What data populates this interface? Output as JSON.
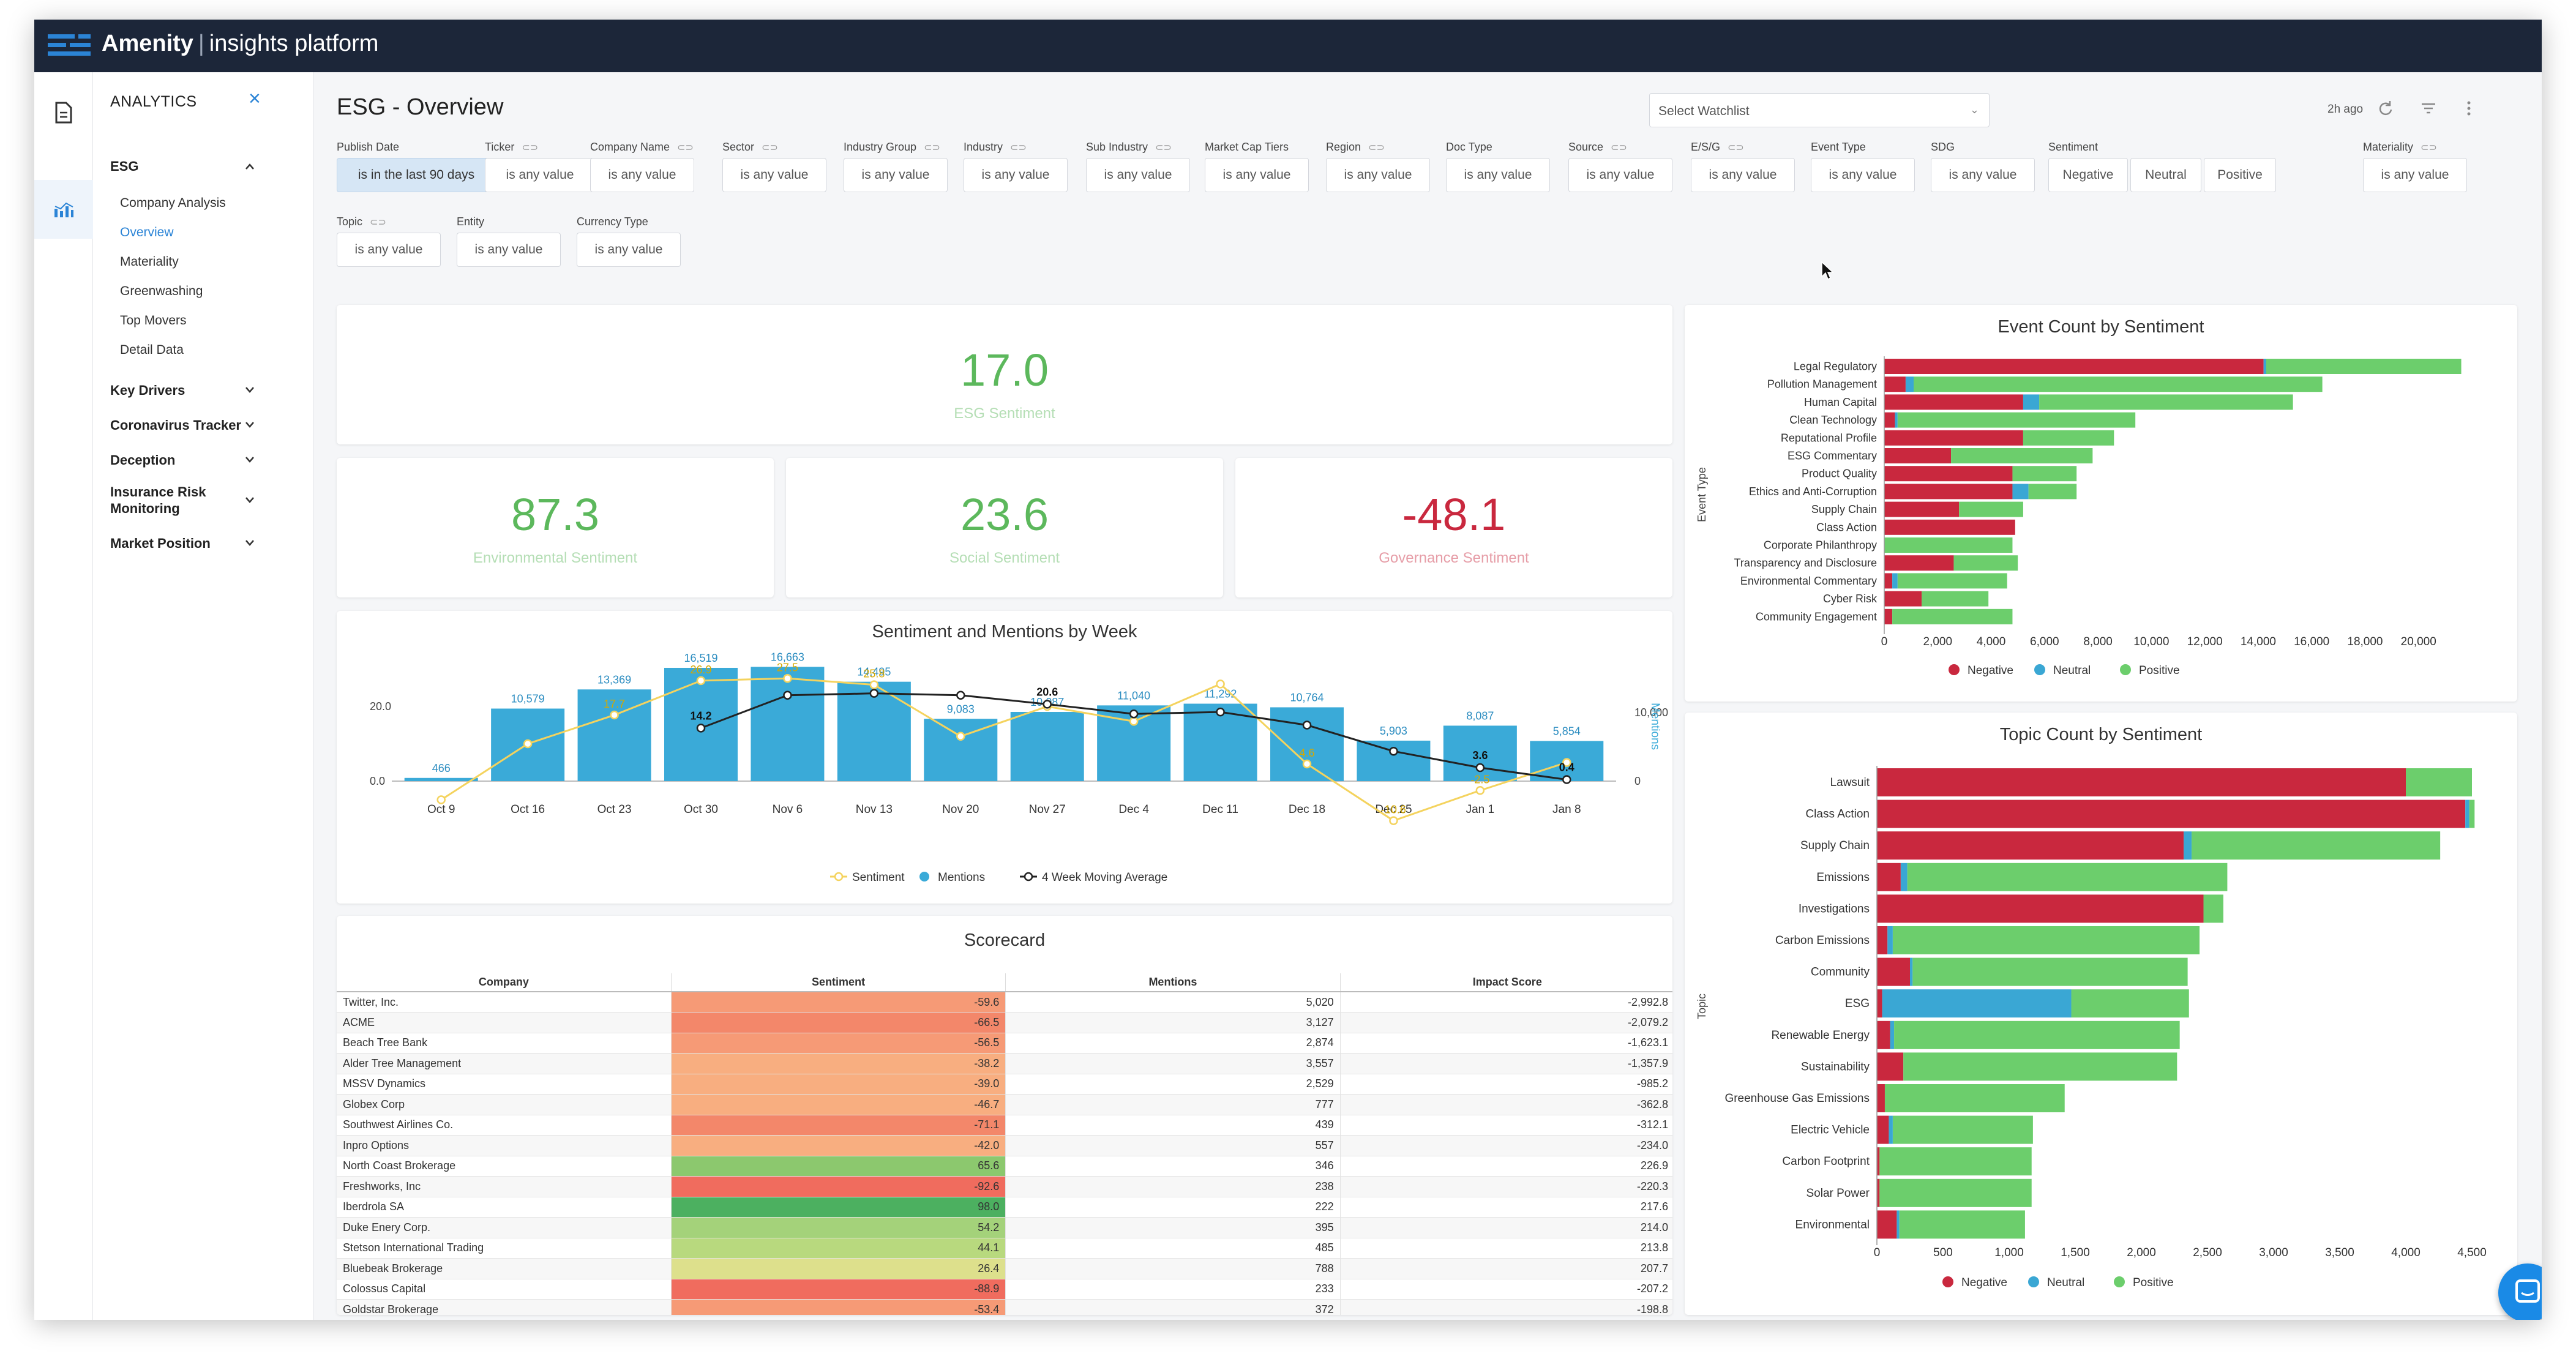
{
  "app": {
    "brand": "Amenity",
    "product": "insights platform"
  },
  "nav": {
    "header": "ANALYTICS",
    "sections": [
      {
        "label": "ESG",
        "expanded": true,
        "items": [
          "Company Analysis",
          "Overview",
          "Materiality",
          "Greenwashing",
          "Top Movers",
          "Detail Data"
        ],
        "active": "Overview"
      },
      {
        "label": "Key Drivers"
      },
      {
        "label": "Coronavirus Tracker"
      },
      {
        "label": "Deception"
      },
      {
        "label": "Insurance Risk Monitoring"
      },
      {
        "label": "Market Position"
      }
    ]
  },
  "page": {
    "title": "ESG - Overview",
    "watchlist_placeholder": "Select Watchlist",
    "updated": "2h ago"
  },
  "filters": [
    {
      "label": "Publish Date",
      "value": "is in the last 90 days",
      "link": false
    },
    {
      "label": "Ticker",
      "value": "is any value",
      "link": true
    },
    {
      "label": "Company Name",
      "value": "is any value",
      "link": true
    },
    {
      "label": "Sector",
      "value": "is any value",
      "link": true
    },
    {
      "label": "Industry Group",
      "value": "is any value",
      "link": true
    },
    {
      "label": "Industry",
      "value": "is any value",
      "link": true
    },
    {
      "label": "Sub Industry",
      "value": "is any value",
      "link": true
    },
    {
      "label": "Market Cap Tiers",
      "value": "is any value",
      "link": false
    },
    {
      "label": "Region",
      "value": "is any value",
      "link": true
    },
    {
      "label": "Doc Type",
      "value": "is any value",
      "link": false
    },
    {
      "label": "Source",
      "value": "is any value",
      "link": true
    },
    {
      "label": "E/S/G",
      "value": "is any value",
      "link": true
    },
    {
      "label": "Event Type",
      "value": "is any value",
      "link": false
    },
    {
      "label": "SDG",
      "value": "is any value",
      "link": false
    },
    {
      "label": "Sentiment",
      "options": [
        "Negative",
        "Neutral",
        "Positive"
      ],
      "link": false
    },
    {
      "label": "Materiality",
      "value": "is any value",
      "link": true
    },
    {
      "label": "Topic",
      "value": "is any value",
      "link": true
    },
    {
      "label": "Entity",
      "value": "is any value",
      "link": false
    },
    {
      "label": "Currency Type",
      "value": "is any value",
      "link": false
    }
  ],
  "kpis": {
    "esg": {
      "value": "17.0",
      "label": "ESG Sentiment"
    },
    "env": {
      "value": "87.3",
      "label": "Environmental Sentiment"
    },
    "soc": {
      "value": "23.6",
      "label": "Social Sentiment"
    },
    "gov": {
      "value": "-48.1",
      "label": "Governance Sentiment"
    }
  },
  "colors": {
    "negative": "#c9283e",
    "neutral": "#3aa7d4",
    "positive": "#6cce6c",
    "sentiment": "#f4d35e",
    "mentions": "#3aaad8",
    "moving_avg": "#222222",
    "green_text": "#5cb85c",
    "red_text": "#c9283e"
  },
  "chart_data": [
    {
      "type": "bar",
      "title": "Sentiment and Mentions by Week",
      "categories": [
        "Oct 9",
        "Oct 16",
        "Oct 23",
        "Oct 30",
        "Nov 6",
        "Nov 13",
        "Nov 20",
        "Nov 27",
        "Dec 4",
        "Dec 11",
        "Dec 18",
        "Dec 25",
        "Jan 1",
        "Jan 8"
      ],
      "series": [
        {
          "name": "Sentiment",
          "kind": "line",
          "axis": "left",
          "values": [
            -5.0,
            10.0,
            17.7,
            26.9,
            27.5,
            25.8,
            12.0,
            20.0,
            16.0,
            26.0,
            4.6,
            -10.6,
            -2.5,
            5.0
          ]
        },
        {
          "name": "Mentions",
          "kind": "bar",
          "axis": "right",
          "values": [
            466,
            10579,
            13369,
            16519,
            16663,
            14495,
            9083,
            10087,
            11040,
            11292,
            10764,
            5903,
            8087,
            5854
          ]
        },
        {
          "name": "4 Week Moving Average",
          "kind": "line",
          "axis": "left",
          "values": [
            null,
            null,
            null,
            14.2,
            23.0,
            23.5,
            23.0,
            20.6,
            18.0,
            18.5,
            15.0,
            8.0,
            3.6,
            0.4
          ]
        }
      ],
      "value_labels": {
        "Sentiment": [
          "",
          "",
          "17.7",
          "26.9",
          "27.5",
          "25.8",
          "",
          "",
          "",
          "",
          "4.6",
          "-10.6",
          "-2.5",
          ""
        ],
        "Mentions": [
          "466",
          "10,579",
          "13,369",
          "16,519",
          "16,663",
          "14,495",
          "9,083",
          "10,087",
          "11,040",
          "11,292",
          "10,764",
          "5,903",
          "8,087",
          "5,854"
        ],
        "4 Week Moving Average": [
          "",
          "",
          "",
          "14.2",
          "",
          "",
          "",
          "20.6",
          "",
          "",
          "",
          "",
          "3.6",
          "0.4"
        ]
      },
      "left_ticks": [
        "20.0",
        "0.0"
      ],
      "right_ticks": [
        "10,000",
        "0"
      ],
      "ylabel_right": "Mentions",
      "legend": "bottom"
    },
    {
      "type": "bar",
      "orientation": "horizontal",
      "stacked": true,
      "title": "Event Count by Sentiment",
      "ylabel": "Event Type",
      "categories": [
        "Legal Regulatory",
        "Pollution Management",
        "Human Capital",
        "Clean Technology",
        "Reputational Profile",
        "ESG Commentary",
        "Product Quality",
        "Ethics and Anti-Corruption",
        "Supply Chain",
        "Class Action",
        "Corporate Philanthropy",
        "Transparency and Disclosure",
        "Environmental Commentary",
        "Cyber Risk",
        "Community Engagement"
      ],
      "series": [
        {
          "name": "Negative",
          "values": [
            14200,
            800,
            5200,
            400,
            5200,
            2500,
            4800,
            4800,
            2800,
            4900,
            0,
            2600,
            300,
            1400,
            300
          ]
        },
        {
          "name": "Neutral",
          "values": [
            100,
            300,
            600,
            100,
            0,
            0,
            0,
            600,
            0,
            0,
            0,
            0,
            200,
            0,
            0
          ]
        },
        {
          "name": "Positive",
          "values": [
            7300,
            15300,
            9500,
            8900,
            3400,
            5300,
            2400,
            1800,
            2400,
            0,
            4800,
            2400,
            4100,
            2500,
            4500
          ]
        }
      ],
      "x_ticks": [
        "0",
        "2,000",
        "4,000",
        "6,000",
        "8,000",
        "10,000",
        "12,000",
        "14,000",
        "16,000",
        "18,000",
        "20,000"
      ],
      "xlim": [
        0,
        22000
      ],
      "legend": "bottom"
    },
    {
      "type": "bar",
      "orientation": "horizontal",
      "stacked": true,
      "title": "Topic Count by Sentiment",
      "ylabel": "Topic",
      "categories": [
        "Lawsuit",
        "Class Action",
        "Supply Chain",
        "Emissions",
        "Investigations",
        "Carbon Emissions",
        "Community",
        "ESG",
        "Renewable Energy",
        "Sustainability",
        "Greenhouse Gas Emissions",
        "Electric Vehicle",
        "Carbon Footprint",
        "Solar Power",
        "Environmental"
      ],
      "series": [
        {
          "name": "Negative",
          "values": [
            4000,
            4450,
            2320,
            180,
            2470,
            80,
            250,
            40,
            100,
            200,
            60,
            90,
            20,
            20,
            150
          ]
        },
        {
          "name": "Neutral",
          "values": [
            0,
            30,
            60,
            50,
            0,
            40,
            20,
            1430,
            30,
            0,
            0,
            30,
            0,
            0,
            20
          ]
        },
        {
          "name": "Positive",
          "values": [
            500,
            40,
            1880,
            2420,
            150,
            2320,
            2080,
            890,
            2160,
            2070,
            1360,
            1060,
            1150,
            1150,
            950
          ]
        }
      ],
      "x_ticks": [
        "0",
        "500",
        "1,000",
        "1,500",
        "2,000",
        "2,500",
        "3,000",
        "3,500",
        "4,000",
        "4,500"
      ],
      "xlim": [
        0,
        4500
      ],
      "legend": "bottom"
    },
    {
      "type": "table",
      "title": "Scorecard",
      "columns": [
        "Company",
        "Sentiment",
        "Mentions",
        "Impact Score"
      ],
      "rows": [
        [
          "Twitter, Inc.",
          "-59.6",
          "5,020",
          "-2,992.8"
        ],
        [
          "ACME",
          "-66.5",
          "3,127",
          "-2,079.2"
        ],
        [
          "Beach Tree Bank",
          "-56.5",
          "2,874",
          "-1,623.1"
        ],
        [
          "Alder Tree Management",
          "-38.2",
          "3,557",
          "-1,357.9"
        ],
        [
          "MSSV Dynamics",
          "-39.0",
          "2,529",
          "-985.2"
        ],
        [
          "Globex Corp",
          "-46.7",
          "777",
          "-362.8"
        ],
        [
          "Southwest Airlines Co.",
          "-71.1",
          "439",
          "-312.1"
        ],
        [
          "Inpro Options",
          "-42.0",
          "557",
          "-234.0"
        ],
        [
          "North Coast Brokerage",
          "65.6",
          "346",
          "226.9"
        ],
        [
          "Freshworks, Inc",
          "-92.6",
          "238",
          "-220.3"
        ],
        [
          "Iberdrola SA",
          "98.0",
          "222",
          "217.6"
        ],
        [
          "Duke Enery Corp.",
          "54.2",
          "395",
          "214.0"
        ],
        [
          "Stetson International Trading",
          "44.1",
          "485",
          "213.8"
        ],
        [
          "Bluebeak Brokerage",
          "26.4",
          "788",
          "207.7"
        ],
        [
          "Colossus Capital",
          "-88.9",
          "233",
          "-207.2"
        ],
        [
          "Goldstar Brokerage",
          "-53.4",
          "372",
          "-198.8"
        ]
      ]
    }
  ],
  "legend_labels": [
    "Negative",
    "Neutral",
    "Positive"
  ],
  "week_legend": [
    "Sentiment",
    "Mentions",
    "4 Week Moving Average"
  ]
}
